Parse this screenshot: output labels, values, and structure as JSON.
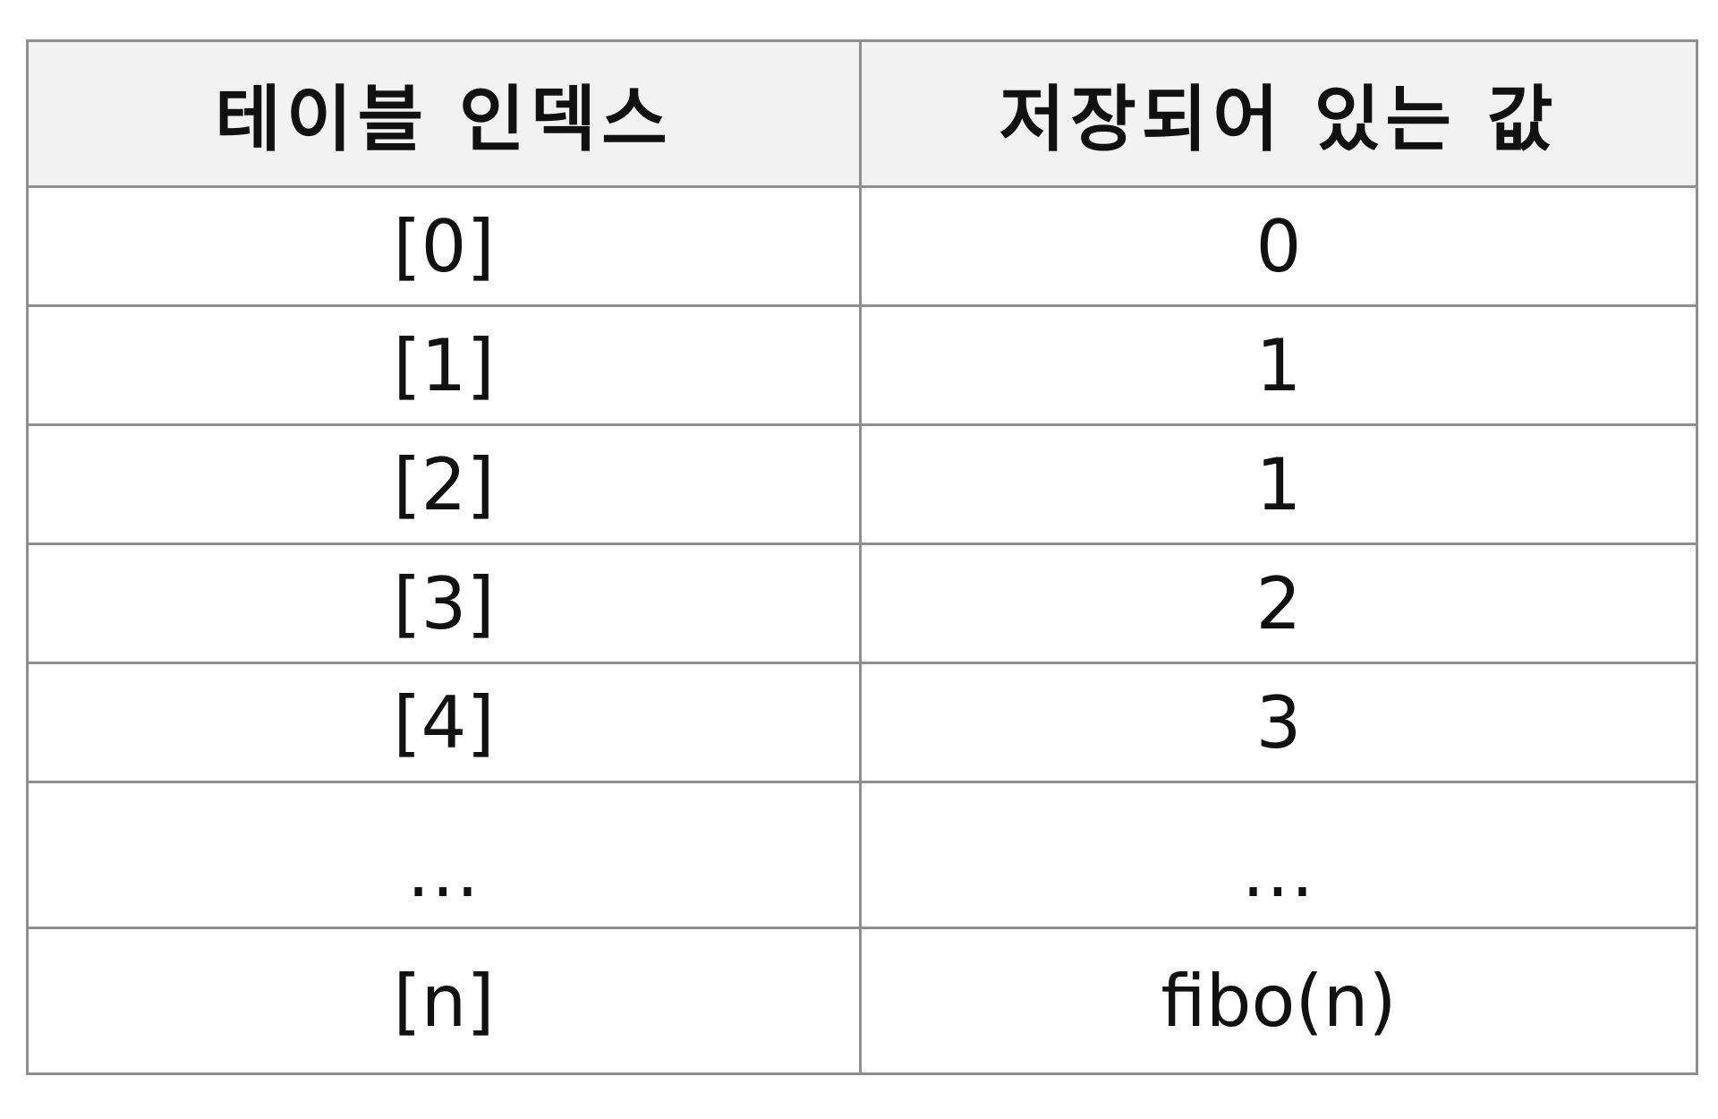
{
  "table": {
    "headers": [
      "테이블 인덱스",
      "저장되어 있는 값"
    ],
    "rows": [
      [
        "[0]",
        "0"
      ],
      [
        "[1]",
        "1"
      ],
      [
        "[2]",
        "1"
      ],
      [
        "[3]",
        "2"
      ],
      [
        "[4]",
        "3"
      ],
      [
        "...",
        "..."
      ],
      [
        "[n]",
        "fibo(n)"
      ]
    ]
  }
}
